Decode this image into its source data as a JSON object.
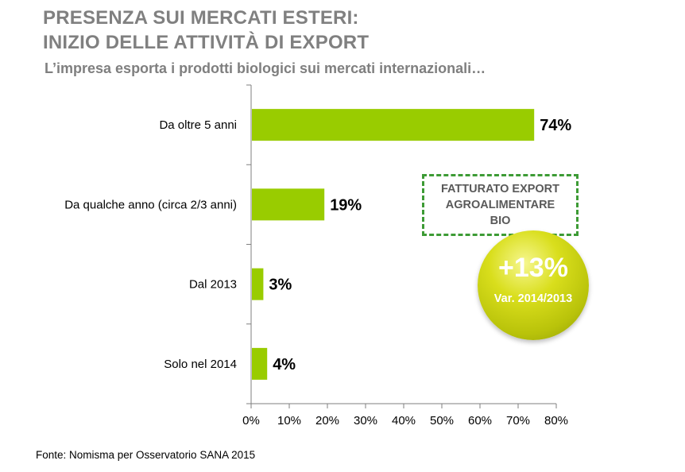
{
  "header": {
    "title_line1": "PRESENZA SUI MERCATI ESTERI:",
    "title_line2": "INIZIO DELLE ATTIVITÀ DI EXPORT",
    "subtitle": "L’impresa esporta i prodotti biologici sui mercati internazionali…"
  },
  "chart_data": {
    "type": "bar",
    "orientation": "horizontal",
    "categories": [
      "Da oltre 5 anni",
      "Da qualche anno (circa 2/3 anni)",
      "Dal 2013",
      "Solo nel 2014"
    ],
    "values": [
      74,
      19,
      3,
      4
    ],
    "value_labels": [
      "74%",
      "19%",
      "3%",
      "4%"
    ],
    "xlim": [
      0,
      80
    ],
    "xticks": [
      "0%",
      "10%",
      "20%",
      "30%",
      "40%",
      "50%",
      "60%",
      "70%",
      "80%"
    ],
    "bar_color": "#99cc00",
    "grid": false
  },
  "callout": {
    "line1": "FATTURATO EXPORT",
    "line2": "AGROALIMENTARE",
    "line3": "BIO"
  },
  "badge": {
    "value": "+13%",
    "label": "Var. 2014/2013"
  },
  "footer": {
    "source": "Fonte: Nomisma per Osservatorio SANA 2015"
  }
}
